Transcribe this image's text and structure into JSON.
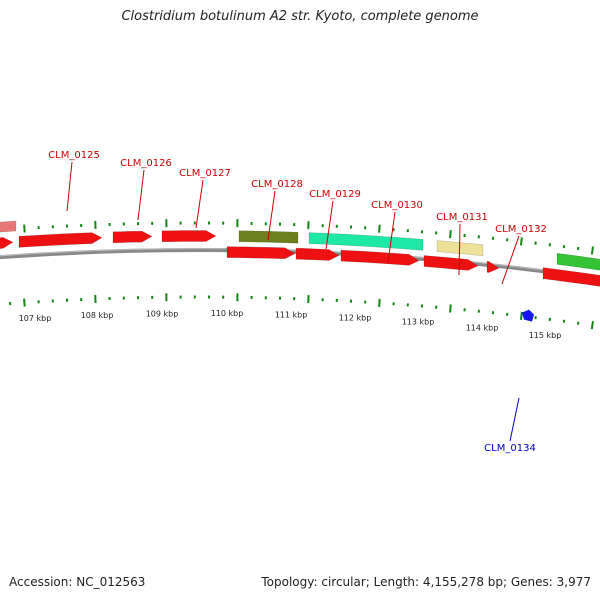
{
  "title": "Clostridium botulinum A2 str. Kyoto, complete genome",
  "footer": {
    "accession": "Accession: NC_012563",
    "summary": "Topology: circular; Length: 4,155,278 bp; Genes: 3,977"
  },
  "scale": {
    "unit": "kbp",
    "ticks": [
      "107 kbp",
      "108 kbp",
      "109 kbp",
      "110 kbp",
      "111 kbp",
      "112 kbp",
      "113 kbp",
      "114 kbp",
      "115 kbp"
    ]
  },
  "colors": {
    "label_red": "#cc0000",
    "label_blue": "#0000cc",
    "cds": "#ee1111",
    "backbone": "#888888",
    "tick_green": "#118811",
    "olive": "#6b7f1e",
    "aqua": "#1de8a5",
    "khaki": "#eee096",
    "green": "#34c334",
    "pink": "#e87878",
    "blue_gene": "#1515ee"
  },
  "gene_labels": [
    {
      "name": "CLM_0125",
      "color": "red"
    },
    {
      "name": "CLM_0126",
      "color": "red"
    },
    {
      "name": "CLM_0127",
      "color": "red"
    },
    {
      "name": "CLM_0128",
      "color": "red"
    },
    {
      "name": "CLM_0129",
      "color": "red"
    },
    {
      "name": "CLM_0130",
      "color": "red"
    },
    {
      "name": "CLM_0131",
      "color": "red"
    },
    {
      "name": "CLM_0132",
      "color": "red"
    },
    {
      "name": "CLM_0134",
      "color": "blue"
    }
  ]
}
